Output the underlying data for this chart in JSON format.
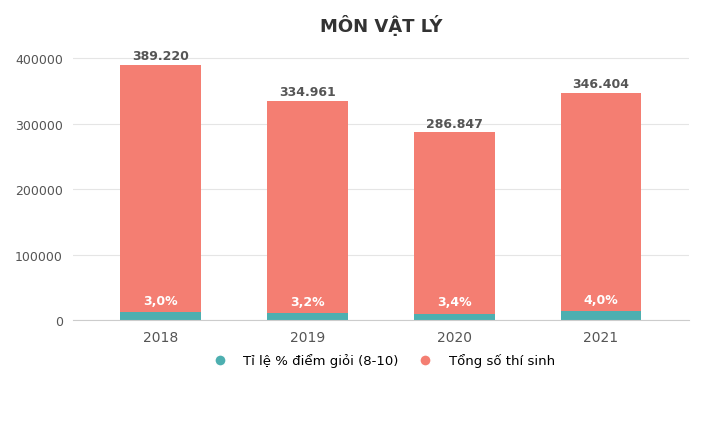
{
  "title": "MÔN VẬT LÝ",
  "years": [
    "2018",
    "2019",
    "2020",
    "2021"
  ],
  "total": [
    389220,
    334961,
    286847,
    346404
  ],
  "pct": [
    3.0,
    3.2,
    3.4,
    4.0
  ],
  "pct_labels": [
    "3,0%",
    "3,2%",
    "3,4%",
    "4,0%"
  ],
  "total_labels": [
    "389.220",
    "334.961",
    "286.847",
    "346.404"
  ],
  "teal_values": [
    11677,
    10719,
    9753,
    13856
  ],
  "color_teal": "#4DAFB0",
  "color_salmon": "#F47E72",
  "background_color": "#FFFFFF",
  "ylim": [
    0,
    420000
  ],
  "yticks": [
    0,
    100000,
    200000,
    300000,
    400000
  ],
  "legend_teal": "Tỉ lệ % điểm giỏi (8-10)",
  "legend_salmon": "Tổng số thí sinh",
  "title_fontsize": 13,
  "bar_width": 0.55
}
